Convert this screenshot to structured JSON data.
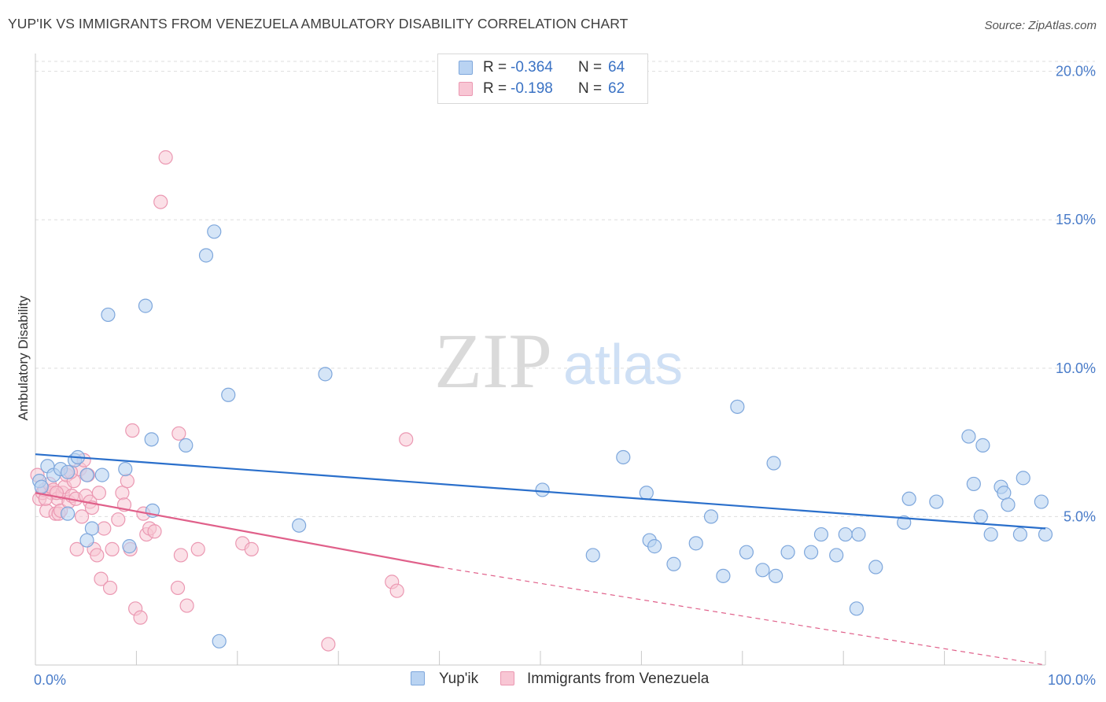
{
  "header": {
    "title": "YUP'IK VS IMMIGRANTS FROM VENEZUELA AMBULATORY DISABILITY CORRELATION CHART",
    "source": "Source: ZipAtlas.com"
  },
  "watermark": {
    "zip": "ZIP",
    "atlas": "atlas"
  },
  "colors": {
    "blue_fill": "#b9d3f2",
    "blue_stroke": "#7ea7dc",
    "blue_line": "#2a6fcb",
    "pink_fill": "#f8c6d4",
    "pink_stroke": "#eb98b2",
    "pink_line": "#e0608a",
    "tick_text": "#4a7cc9",
    "grid": "#dddddd"
  },
  "legend": {
    "rows": [
      {
        "r_label": "R =",
        "r_value": "-0.364",
        "n_label": "N =",
        "n_value": "64"
      },
      {
        "r_label": "R =",
        "r_value": "-0.198",
        "n_label": "N =",
        "n_value": "62"
      }
    ]
  },
  "bottom_legend": {
    "series1": "Yup'ik",
    "series2": "Immigrants from Venezuela"
  },
  "chart_data": {
    "type": "scatter",
    "title": "YUP'IK VS IMMIGRANTS FROM VENEZUELA AMBULATORY DISABILITY CORRELATION CHART",
    "xlabel": "",
    "ylabel": "Ambulatory Disability",
    "xlim": [
      0,
      100
    ],
    "ylim": [
      0,
      20.6
    ],
    "y_ticks": [
      5,
      10,
      15,
      20
    ],
    "y_tick_labels": [
      "5.0%",
      "10.0%",
      "15.0%",
      "20.0%"
    ],
    "x_tick_labels": [
      "0.0%",
      "100.0%"
    ],
    "grid": "horizontal dashed",
    "legend_position": "top-center",
    "series": [
      {
        "name": "Yup'ik",
        "r": -0.364,
        "n": 64,
        "trend": {
          "x": [
            0,
            100
          ],
          "y": [
            7.1,
            4.6
          ]
        },
        "points": [
          [
            0.4,
            6.2
          ],
          [
            1.2,
            6.7
          ],
          [
            1.8,
            6.4
          ],
          [
            2.5,
            6.6
          ],
          [
            0.6,
            6.0
          ],
          [
            3.2,
            6.5
          ],
          [
            3.9,
            6.9
          ],
          [
            4.2,
            7.0
          ],
          [
            5.1,
            6.4
          ],
          [
            3.2,
            5.1
          ],
          [
            5.6,
            4.6
          ],
          [
            5.1,
            4.2
          ],
          [
            6.6,
            6.4
          ],
          [
            7.2,
            11.8
          ],
          [
            8.9,
            6.6
          ],
          [
            9.3,
            4.0
          ],
          [
            10.9,
            12.1
          ],
          [
            11.6,
            5.2
          ],
          [
            11.5,
            7.6
          ],
          [
            14.9,
            7.4
          ],
          [
            16.9,
            13.8
          ],
          [
            17.7,
            14.6
          ],
          [
            19.1,
            9.1
          ],
          [
            18.2,
            0.8
          ],
          [
            26.1,
            4.7
          ],
          [
            28.7,
            9.8
          ],
          [
            50.2,
            5.9
          ],
          [
            55.2,
            3.7
          ],
          [
            58.2,
            7.0
          ],
          [
            60.5,
            5.8
          ],
          [
            60.8,
            4.2
          ],
          [
            61.3,
            4.0
          ],
          [
            63.2,
            3.4
          ],
          [
            65.4,
            4.1
          ],
          [
            66.9,
            5.0
          ],
          [
            68.1,
            3.0
          ],
          [
            69.5,
            8.7
          ],
          [
            70.4,
            3.8
          ],
          [
            72.0,
            3.2
          ],
          [
            73.1,
            6.8
          ],
          [
            73.3,
            3.0
          ],
          [
            74.5,
            3.8
          ],
          [
            76.8,
            3.8
          ],
          [
            77.8,
            4.4
          ],
          [
            79.3,
            3.7
          ],
          [
            80.2,
            4.4
          ],
          [
            81.5,
            4.4
          ],
          [
            81.3,
            1.9
          ],
          [
            83.2,
            3.3
          ],
          [
            86.0,
            4.8
          ],
          [
            86.5,
            5.6
          ],
          [
            89.2,
            5.5
          ],
          [
            92.4,
            7.7
          ],
          [
            92.9,
            6.1
          ],
          [
            93.6,
            5.0
          ],
          [
            93.8,
            7.4
          ],
          [
            94.6,
            4.4
          ],
          [
            95.6,
            6.0
          ],
          [
            95.9,
            5.8
          ],
          [
            96.3,
            5.4
          ],
          [
            97.5,
            4.4
          ],
          [
            97.8,
            6.3
          ],
          [
            99.6,
            5.5
          ],
          [
            100.0,
            4.4
          ]
        ]
      },
      {
        "name": "Immigrants from Venezuela",
        "r": -0.198,
        "n": 62,
        "trend": {
          "x": [
            0,
            40
          ],
          "y": [
            5.8,
            3.3
          ]
        },
        "trend_dashed": {
          "x": [
            40,
            100
          ],
          "y": [
            3.3,
            -0.2
          ]
        },
        "points": [
          [
            0.2,
            6.4
          ],
          [
            0.4,
            5.6
          ],
          [
            0.7,
            5.8
          ],
          [
            0.9,
            5.9
          ],
          [
            1.1,
            5.2
          ],
          [
            1.4,
            6.1
          ],
          [
            1.6,
            5.8
          ],
          [
            1.8,
            5.9
          ],
          [
            2.0,
            5.1
          ],
          [
            2.2,
            5.6
          ],
          [
            2.3,
            5.1
          ],
          [
            2.5,
            5.2
          ],
          [
            2.7,
            5.8
          ],
          [
            2.9,
            6.0
          ],
          [
            3.1,
            6.4
          ],
          [
            3.3,
            5.5
          ],
          [
            3.6,
            5.7
          ],
          [
            3.8,
            6.2
          ],
          [
            4.0,
            5.6
          ],
          [
            4.1,
            3.9
          ],
          [
            4.4,
            6.6
          ],
          [
            4.6,
            5.0
          ],
          [
            4.8,
            6.9
          ],
          [
            5.0,
            5.7
          ],
          [
            5.2,
            6.4
          ],
          [
            5.4,
            5.5
          ],
          [
            5.6,
            5.3
          ],
          [
            5.8,
            3.9
          ],
          [
            6.1,
            3.7
          ],
          [
            6.3,
            5.8
          ],
          [
            6.5,
            2.9
          ],
          [
            6.8,
            4.6
          ],
          [
            7.4,
            2.6
          ],
          [
            7.6,
            3.9
          ],
          [
            8.2,
            4.9
          ],
          [
            8.6,
            5.8
          ],
          [
            8.8,
            5.4
          ],
          [
            9.1,
            6.2
          ],
          [
            9.4,
            3.9
          ],
          [
            9.6,
            7.9
          ],
          [
            9.9,
            1.9
          ],
          [
            10.4,
            1.6
          ],
          [
            10.7,
            5.1
          ],
          [
            11.0,
            4.4
          ],
          [
            11.3,
            4.6
          ],
          [
            11.8,
            4.5
          ],
          [
            12.9,
            17.1
          ],
          [
            12.4,
            15.6
          ],
          [
            14.2,
            7.8
          ],
          [
            14.1,
            2.6
          ],
          [
            14.4,
            3.7
          ],
          [
            15.0,
            2.0
          ],
          [
            16.1,
            3.9
          ],
          [
            20.5,
            4.1
          ],
          [
            21.4,
            3.9
          ],
          [
            29.0,
            0.7
          ],
          [
            35.3,
            2.8
          ],
          [
            35.8,
            2.5
          ],
          [
            36.7,
            7.6
          ],
          [
            2.1,
            5.8
          ],
          [
            3.5,
            6.5
          ],
          [
            1.0,
            5.6
          ]
        ]
      }
    ]
  }
}
